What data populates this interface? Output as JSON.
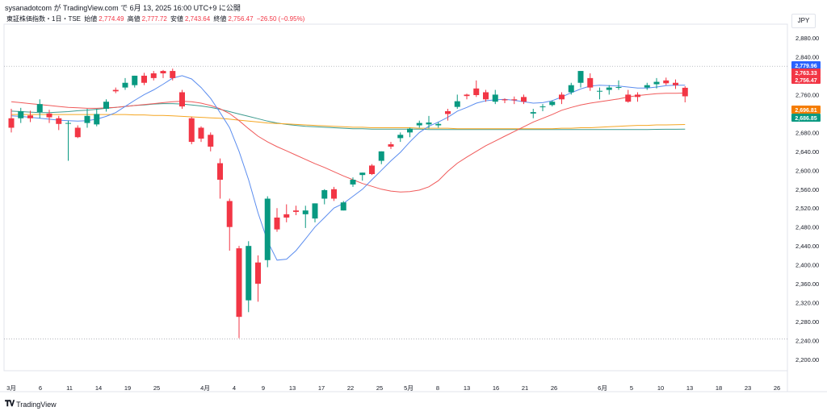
{
  "header": {
    "caption": "sysanadotcom が TradingView.com で 6月 13, 2025 16:00 UTC+9 に公開"
  },
  "legend": {
    "symbol": "東証株価指数・1日・TSE",
    "open_label": "始値",
    "open": "2,774.49",
    "high_label": "高値",
    "high": "2,777.72",
    "low_label": "安値",
    "low": "2,743.64",
    "close_label": "終値",
    "close": "2,756.47",
    "change": "−26.50 (−0.95%)"
  },
  "currency": "JPY",
  "footer": {
    "brand": "TradingView"
  },
  "colors": {
    "up": "#089981",
    "down": "#f23645",
    "ma_short": "#5b8def",
    "ma_mid": "#f05a5a",
    "ma_long_orange": "#f5a623",
    "ma_long_teal": "#3d9b8f"
  },
  "chart_data": {
    "type": "candlestick",
    "y_ticks": [
      "2,880.00",
      "2,840.00",
      "2,800.00",
      "2,760.00",
      "2,720.00",
      "2,680.00",
      "2,640.00",
      "2,600.00",
      "2,560.00",
      "2,520.00",
      "2,480.00",
      "2,440.00",
      "2,400.00",
      "2,360.00",
      "2,320.00",
      "2,280.00",
      "2,240.00",
      "2,200.00"
    ],
    "x_ticks": [
      "3月",
      "6",
      "11",
      "14",
      "19",
      "25",
      "4月",
      "4",
      "9",
      "13",
      "17",
      "22",
      "25",
      "5月",
      "8",
      "13",
      "16",
      "21",
      "26",
      "6月",
      "5",
      "10",
      "13",
      "18",
      "23",
      "26"
    ],
    "price_labels": [
      {
        "text": "2,779.96",
        "color": "#2962ff"
      },
      {
        "text": "2,763.33",
        "color": "#f23645"
      },
      {
        "text": "2,756.47",
        "color": "#f23645"
      },
      {
        "text": "2,696.81",
        "color": "#f57c00"
      },
      {
        "text": "2,686.85",
        "color": "#089981"
      }
    ],
    "dotted_levels": [
      2820,
      2243
    ],
    "candles": [
      [
        2710,
        2730,
        2680,
        2690
      ],
      [
        2710,
        2732,
        2700,
        2725
      ],
      [
        2716,
        2726,
        2702,
        2710
      ],
      [
        2723,
        2750,
        2710,
        2740
      ],
      [
        2720,
        2728,
        2700,
        2712
      ],
      [
        2710,
        2715,
        2685,
        2698
      ],
      [
        2700,
        2705,
        2620,
        2700
      ],
      [
        2690,
        2695,
        2668,
        2670
      ],
      [
        2700,
        2730,
        2690,
        2715
      ],
      [
        2697,
        2730,
        2693,
        2719
      ],
      [
        2730,
        2750,
        2724,
        2745
      ],
      [
        2770,
        2775,
        2763,
        2767
      ],
      [
        2775,
        2795,
        2770,
        2785
      ],
      [
        2780,
        2800,
        2775,
        2800
      ],
      [
        2800,
        2806,
        2780,
        2785
      ],
      [
        2805,
        2810,
        2790,
        2795
      ],
      [
        2810,
        2812,
        2795,
        2805
      ],
      [
        2810,
        2815,
        2790,
        2795
      ],
      [
        2765,
        2770,
        2730,
        2735
      ],
      [
        2710,
        2713,
        2655,
        2660
      ],
      [
        2690,
        2693,
        2660,
        2667
      ],
      [
        2675,
        2680,
        2640,
        2650
      ],
      [
        2615,
        2625,
        2540,
        2580
      ],
      [
        2535,
        2540,
        2430,
        2480
      ],
      [
        2435,
        2440,
        2245,
        2290
      ],
      [
        2325,
        2450,
        2300,
        2440
      ],
      [
        2405,
        2420,
        2322,
        2360
      ],
      [
        2410,
        2545,
        2395,
        2540
      ],
      [
        2500,
        2520,
        2470,
        2475
      ],
      [
        2507,
        2528,
        2490,
        2500
      ],
      [
        2515,
        2525,
        2505,
        2512
      ],
      [
        2507,
        2525,
        2478,
        2515
      ],
      [
        2498,
        2530,
        2490,
        2530
      ],
      [
        2540,
        2560,
        2528,
        2558
      ],
      [
        2560,
        2565,
        2535,
        2540
      ],
      [
        2515,
        2535,
        2515,
        2532
      ],
      [
        2570,
        2585,
        2565,
        2580
      ],
      [
        2590,
        2595,
        2578,
        2595
      ],
      [
        2610,
        2613,
        2590,
        2592
      ],
      [
        2620,
        2640,
        2613,
        2640
      ],
      [
        2655,
        2660,
        2645,
        2650
      ],
      [
        2668,
        2680,
        2660,
        2675
      ],
      [
        2680,
        2690,
        2670,
        2688
      ],
      [
        2695,
        2705,
        2690,
        2700
      ],
      [
        2697,
        2715,
        2688,
        2701
      ],
      [
        2695,
        2702,
        2690,
        2698
      ],
      [
        2725,
        2730,
        2705,
        2719
      ],
      [
        2734,
        2760,
        2730,
        2746
      ],
      [
        2760,
        2762,
        2750,
        2757
      ],
      [
        2773,
        2790,
        2755,
        2759
      ],
      [
        2765,
        2770,
        2745,
        2750
      ],
      [
        2745,
        2770,
        2740,
        2760
      ],
      [
        2750,
        2752,
        2742,
        2748
      ],
      [
        2750,
        2756,
        2740,
        2748
      ],
      [
        2755,
        2760,
        2740,
        2745
      ],
      [
        2720,
        2730,
        2710,
        2723
      ],
      [
        2735,
        2740,
        2725,
        2735
      ],
      [
        2738,
        2748,
        2735,
        2745
      ],
      [
        2760,
        2765,
        2740,
        2750
      ],
      [
        2765,
        2785,
        2760,
        2780
      ],
      [
        2785,
        2810,
        2775,
        2810
      ],
      [
        2795,
        2805,
        2768,
        2775
      ],
      [
        2768,
        2775,
        2750,
        2768
      ],
      [
        2770,
        2780,
        2760,
        2775
      ],
      [
        2775,
        2790,
        2770,
        2776
      ],
      [
        2760,
        2770,
        2743,
        2745
      ],
      [
        2760,
        2765,
        2745,
        2755
      ],
      [
        2775,
        2785,
        2770,
        2780
      ],
      [
        2782,
        2795,
        2773,
        2787
      ],
      [
        2790,
        2796,
        2780,
        2784
      ],
      [
        2785,
        2792,
        2772,
        2780
      ],
      [
        2774.49,
        2777.72,
        2743.64,
        2756.47
      ]
    ],
    "ma_short": [
      2715,
      2714,
      2712,
      2710,
      2708,
      2706,
      2705,
      2704,
      2705,
      2708,
      2714,
      2722,
      2735,
      2748,
      2760,
      2770,
      2782,
      2795,
      2800,
      2793,
      2775,
      2752,
      2722,
      2690,
      2640,
      2580,
      2510,
      2450,
      2410,
      2412,
      2430,
      2455,
      2480,
      2500,
      2520,
      2530,
      2545,
      2560,
      2580,
      2600,
      2620,
      2638,
      2660,
      2680,
      2693,
      2702,
      2712,
      2725,
      2733,
      2742,
      2747,
      2749,
      2750,
      2748,
      2745,
      2742,
      2743,
      2747,
      2755,
      2764,
      2772,
      2778,
      2780,
      2779,
      2778,
      2776,
      2774,
      2774,
      2776,
      2779,
      2780,
      2779.96
    ],
    "ma_mid": [
      2745,
      2743,
      2741,
      2739,
      2737,
      2735,
      2733,
      2732,
      2731,
      2731,
      2732,
      2733,
      2735,
      2737,
      2739,
      2741,
      2743,
      2745,
      2746,
      2745,
      2742,
      2737,
      2730,
      2720,
      2705,
      2688,
      2672,
      2660,
      2650,
      2641,
      2632,
      2623,
      2614,
      2606,
      2597,
      2588,
      2580,
      2572,
      2566,
      2560,
      2556,
      2554,
      2555,
      2558,
      2565,
      2578,
      2598,
      2615,
      2628,
      2640,
      2652,
      2662,
      2672,
      2682,
      2692,
      2702,
      2710,
      2718,
      2727,
      2733,
      2738,
      2742,
      2745,
      2748,
      2751,
      2755,
      2758,
      2760,
      2762,
      2763,
      2763,
      2763.33
    ],
    "ma_long_orange": [
      2718,
      2718,
      2718,
      2718,
      2718,
      2718,
      2718,
      2718,
      2718,
      2718,
      2718,
      2718,
      2718,
      2717,
      2717,
      2716,
      2716,
      2715,
      2714,
      2713,
      2712,
      2711,
      2710,
      2708,
      2706,
      2704,
      2702,
      2700,
      2699,
      2698,
      2697,
      2696,
      2695,
      2694,
      2693,
      2692,
      2691,
      2691,
      2690,
      2690,
      2690,
      2690,
      2690,
      2689,
      2689,
      2689,
      2689,
      2688,
      2688,
      2688,
      2688,
      2688,
      2688,
      2688,
      2688,
      2688,
      2688,
      2688,
      2689,
      2689,
      2690,
      2690,
      2691,
      2692,
      2693,
      2694,
      2695,
      2695,
      2696,
      2696,
      2696.5,
      2696.81
    ],
    "ma_long_teal": [
      2725,
      2724,
      2723,
      2722,
      2722,
      2723,
      2724,
      2726,
      2727,
      2729,
      2731,
      2733,
      2735,
      2737,
      2738,
      2740,
      2741,
      2741,
      2740,
      2738,
      2736,
      2733,
      2729,
      2724,
      2719,
      2714,
      2709,
      2704,
      2700,
      2697,
      2695,
      2693,
      2692,
      2691,
      2690,
      2689,
      2688,
      2688,
      2687,
      2687,
      2687,
      2687,
      2687,
      2687,
      2686,
      2686,
      2686,
      2686,
      2686,
      2686,
      2686,
      2686,
      2686,
      2686,
      2686,
      2686,
      2686,
      2686,
      2686,
      2686,
      2686,
      2686,
      2686,
      2686,
      2686,
      2686,
      2686,
      2686,
      2686.5,
      2686.7,
      2686.8,
      2686.85
    ]
  }
}
